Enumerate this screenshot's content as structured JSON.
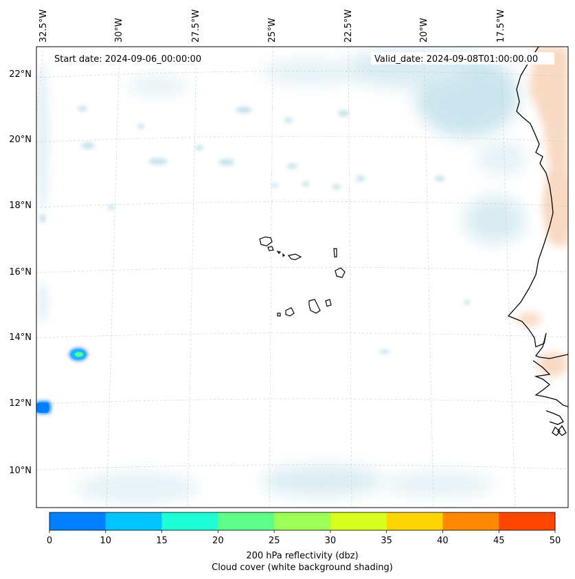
{
  "map": {
    "start_label": "Start date: 2024-09-06_00:00:00",
    "valid_label": "Valid_date: 2024-09-08T01:00:00.00",
    "lon_ticks": [
      "32.5°W",
      "30°W",
      "27.5°W",
      "25°W",
      "22.5°W",
      "20°W",
      "17.5°W"
    ],
    "lat_ticks": [
      "22°N",
      "20°N",
      "18°N",
      "16°N",
      "14°N",
      "12°N",
      "10°N"
    ]
  },
  "colorbar": {
    "ticks": [
      "0",
      "10",
      "15",
      "20",
      "25",
      "30",
      "35",
      "40",
      "45",
      "50"
    ],
    "colors": [
      "#0080ff",
      "#00c4ff",
      "#1effd8",
      "#5cff8a",
      "#9cff56",
      "#d8ff1e",
      "#ffd600",
      "#ff8a00",
      "#ff4600"
    ],
    "label_line1": "200 hPa reflectivity (dbz)",
    "label_line2": "Cloud cover (white background shading)"
  },
  "colors": {
    "cloud": "#b9dde8",
    "warm": "#f6c9a8",
    "gridline": "#c8c8c8"
  }
}
